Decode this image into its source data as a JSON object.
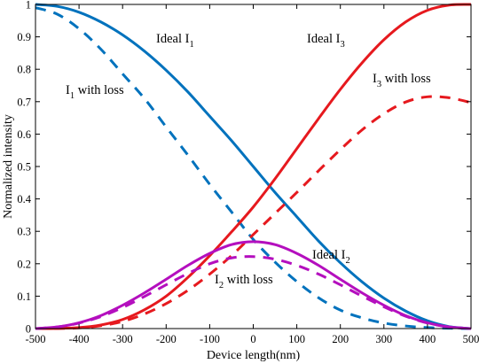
{
  "chart_data": {
    "type": "line",
    "title": "",
    "xlabel": "Device length(nm)",
    "ylabel": "Normalized intensity",
    "xlim": [
      -500,
      500
    ],
    "ylim": [
      0,
      1
    ],
    "grid": false,
    "xticks": [
      -500,
      -400,
      -300,
      -200,
      -100,
      0,
      100,
      200,
      300,
      400,
      500
    ],
    "xtick_labels": [
      "-500",
      "-400",
      "-300",
      "-200",
      "-100",
      "0",
      "100",
      "200",
      "300",
      "400",
      "500"
    ],
    "yticks": [
      0,
      0.1,
      0.2,
      0.3,
      0.4,
      0.5,
      0.6,
      0.7,
      0.8,
      0.9,
      1
    ],
    "ytick_labels": [
      "0",
      "0.1",
      "0.2",
      "0.3",
      "0.4",
      "0.5",
      "0.6",
      "0.7",
      "0.8",
      "0.9",
      "1"
    ],
    "x": [
      -500,
      -450,
      -400,
      -350,
      -300,
      -250,
      -200,
      -150,
      -100,
      -50,
      0,
      50,
      100,
      150,
      200,
      250,
      300,
      350,
      400,
      450,
      500
    ],
    "series": [
      {
        "key": "ideal_i1",
        "color": "#0072BD",
        "dash": "solid",
        "values": [
          1.0,
          0.994,
          0.976,
          0.946,
          0.906,
          0.856,
          0.797,
          0.73,
          0.655,
          0.58,
          0.5,
          0.42,
          0.345,
          0.27,
          0.203,
          0.144,
          0.094,
          0.054,
          0.024,
          0.006,
          0.0
        ]
      },
      {
        "key": "i1_with_loss",
        "color": "#0072BD",
        "dash": "dashed",
        "values": [
          0.99,
          0.97,
          0.925,
          0.862,
          0.786,
          0.71,
          0.622,
          0.535,
          0.445,
          0.36,
          0.275,
          0.205,
          0.145,
          0.095,
          0.057,
          0.033,
          0.017,
          0.008,
          0.003,
          0.001,
          0.0
        ]
      },
      {
        "key": "ideal_i3",
        "color": "#E6191E",
        "dash": "solid",
        "values": [
          0.0,
          0.0005,
          0.003,
          0.011,
          0.028,
          0.058,
          0.1,
          0.158,
          0.225,
          0.298,
          0.375,
          0.462,
          0.555,
          0.648,
          0.738,
          0.82,
          0.891,
          0.946,
          0.982,
          0.998,
          1.0
        ]
      },
      {
        "key": "i3_with_loss",
        "color": "#E6191E",
        "dash": "dashed",
        "values": [
          0.0,
          0.0004,
          0.002,
          0.009,
          0.022,
          0.045,
          0.077,
          0.118,
          0.168,
          0.225,
          0.29,
          0.355,
          0.42,
          0.487,
          0.552,
          0.613,
          0.663,
          0.699,
          0.715,
          0.712,
          0.697
        ]
      },
      {
        "key": "ideal_i2",
        "color": "#B40FBE",
        "dash": "solid",
        "values": [
          0.0,
          0.005,
          0.018,
          0.04,
          0.072,
          0.11,
          0.152,
          0.195,
          0.232,
          0.259,
          0.268,
          0.259,
          0.232,
          0.195,
          0.152,
          0.11,
          0.072,
          0.04,
          0.018,
          0.005,
          0.0
        ]
      },
      {
        "key": "i2_with_loss",
        "color": "#B40FBE",
        "dash": "dashed",
        "values": [
          0.0,
          0.005,
          0.017,
          0.037,
          0.065,
          0.099,
          0.135,
          0.17,
          0.2,
          0.218,
          0.222,
          0.214,
          0.195,
          0.168,
          0.135,
          0.1,
          0.067,
          0.038,
          0.017,
          0.005,
          0.0
        ]
      }
    ],
    "annotations": [
      {
        "key": "ideal_i1",
        "main": "Ideal I",
        "sub": "1"
      },
      {
        "key": "i1_with_loss",
        "main": "I",
        "sub": "1",
        "tail": " with loss"
      },
      {
        "key": "ideal_i3",
        "main": "Ideal I",
        "sub": "3"
      },
      {
        "key": "i3_with_loss",
        "main": "I",
        "sub": "3",
        "tail": " with loss"
      },
      {
        "key": "ideal_i2",
        "main": "Ideal I",
        "sub": "2"
      },
      {
        "key": "i2_with_loss",
        "main": "I",
        "sub": "2",
        "tail": " with loss"
      }
    ]
  }
}
